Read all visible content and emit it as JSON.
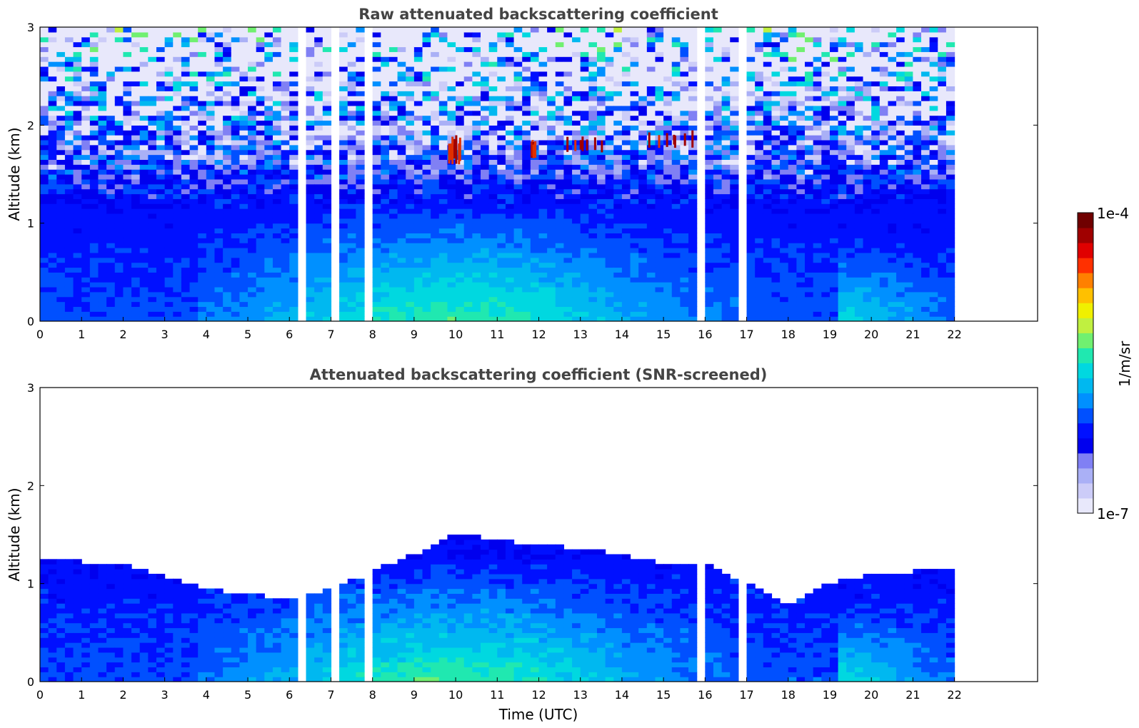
{
  "chart_data": [
    {
      "type": "heatmap",
      "title": "Raw attenuated backscattering coefficient",
      "xlabel": "",
      "ylabel": "Altitude (km)",
      "xlim": [
        0,
        24
      ],
      "ylim": [
        0,
        3
      ],
      "x_ticks": [
        "0",
        "1",
        "2",
        "3",
        "4",
        "5",
        "6",
        "7",
        "8",
        "9",
        "10",
        "11",
        "12",
        "13",
        "14",
        "15",
        "16",
        "17",
        "18",
        "19",
        "20",
        "21",
        "22"
      ],
      "y_ticks": [
        "0",
        "1",
        "2",
        "3"
      ],
      "data_extent_x": [
        0,
        22
      ],
      "gaps_utc": [
        6.3,
        7.1,
        7.9,
        15.9,
        16.85
      ],
      "features": [
        {
          "kind": "aerosol_layer",
          "x": [
            4,
            19
          ],
          "y_top_km": 1.0,
          "peak_x": 10
        },
        {
          "kind": "cloud",
          "x": [
            9.8,
            10.1
          ],
          "y": [
            1.6,
            1.9
          ]
        },
        {
          "kind": "cloud",
          "x": [
            11.8,
            11.9
          ],
          "y": [
            1.65,
            1.85
          ]
        },
        {
          "kind": "cloud",
          "x": [
            12.6,
            13.5
          ],
          "y": [
            1.7,
            1.9
          ]
        },
        {
          "kind": "cloud",
          "x": [
            14.6,
            15.7
          ],
          "y": [
            1.75,
            1.95
          ]
        },
        {
          "kind": "enhanced_boundary_layer",
          "x": [
            19.1,
            21.9
          ],
          "y_top_km": 0.8
        }
      ]
    },
    {
      "type": "heatmap",
      "title": "Attenuated backscattering coefficient (SNR-screened)",
      "xlabel": "Time (UTC)",
      "ylabel": "Altitude (km)",
      "xlim": [
        0,
        24
      ],
      "ylim": [
        0,
        3
      ],
      "x_ticks": [
        "0",
        "1",
        "2",
        "3",
        "4",
        "5",
        "6",
        "7",
        "8",
        "9",
        "10",
        "11",
        "12",
        "13",
        "14",
        "15",
        "16",
        "17",
        "18",
        "19",
        "20",
        "21",
        "22"
      ],
      "y_ticks": [
        "0",
        "1",
        "2",
        "3"
      ],
      "data_extent_x": [
        0,
        22
      ],
      "gaps_utc": [
        6.3,
        7.1,
        7.9,
        15.9,
        16.85
      ],
      "screened_top_km": [
        [
          0,
          1.25
        ],
        [
          2,
          1.2
        ],
        [
          4,
          0.95
        ],
        [
          6,
          0.85
        ],
        [
          7,
          0.95
        ],
        [
          9,
          1.3
        ],
        [
          10,
          1.5
        ],
        [
          12,
          1.4
        ],
        [
          14,
          1.3
        ],
        [
          15,
          1.2
        ],
        [
          16,
          1.2
        ],
        [
          17,
          1.0
        ],
        [
          18,
          0.8
        ],
        [
          19,
          1.0
        ],
        [
          20,
          1.1
        ],
        [
          22,
          1.15
        ]
      ]
    }
  ],
  "colorbar": {
    "label": "1/m/sr",
    "max_label": "1e-4",
    "min_label": "1e-7",
    "colors": [
      "#e8e8fb",
      "#ccccf8",
      "#aab0f6",
      "#8080f4",
      "#0000ee",
      "#0010ff",
      "#0050ff",
      "#0090ff",
      "#00b8f0",
      "#00d8e0",
      "#20e8b0",
      "#70f070",
      "#c0f040",
      "#f0f000",
      "#ffc000",
      "#ff8000",
      "#ff3000",
      "#e00000",
      "#a00000",
      "#700000"
    ]
  }
}
